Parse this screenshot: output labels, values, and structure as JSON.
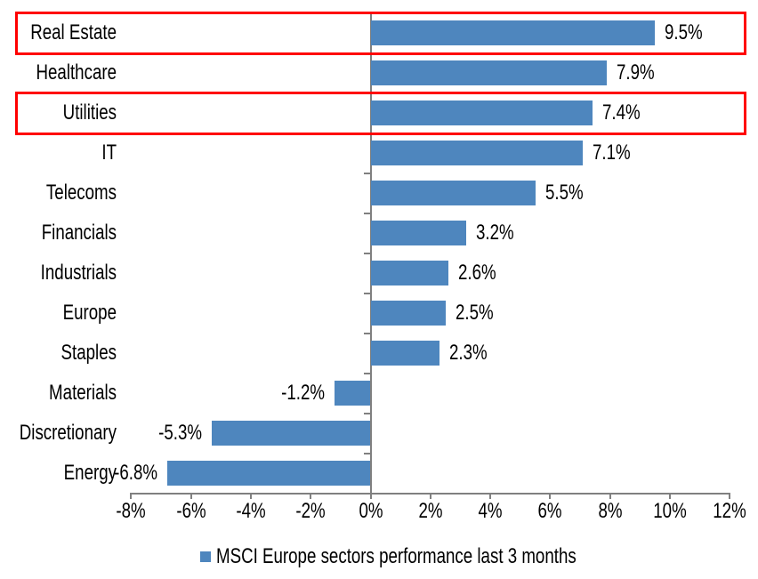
{
  "chart_data": {
    "type": "bar",
    "orientation": "horizontal",
    "title": "",
    "categories": [
      "Real Estate",
      "Healthcare",
      "Utilities",
      "IT",
      "Telecoms",
      "Financials",
      "Industrials",
      "Europe",
      "Staples",
      "Materials",
      "Discretionary",
      "Energy"
    ],
    "values": [
      9.5,
      7.9,
      7.4,
      7.1,
      5.5,
      3.2,
      2.6,
      2.5,
      2.3,
      -1.2,
      -5.3,
      -6.8
    ],
    "data_labels": [
      "9.5%",
      "7.9%",
      "7.4%",
      "7.1%",
      "5.5%",
      "3.2%",
      "2.6%",
      "2.5%",
      "2.3%",
      "-1.2%",
      "-5.3%",
      "-6.8%"
    ],
    "xlabel": "",
    "ylabel": "",
    "xlim": [
      -8,
      12
    ],
    "x_ticks": [
      -8,
      -6,
      -4,
      -2,
      0,
      2,
      4,
      6,
      8,
      10,
      12
    ],
    "x_tick_labels": [
      "-8%",
      "-6%",
      "-4%",
      "-2%",
      "0%",
      "2%",
      "4%",
      "6%",
      "8%",
      "10%",
      "12%"
    ],
    "grid": false,
    "legend": "MSCI Europe sectors performance last 3 months",
    "legend_position": "bottom-center",
    "bar_color": "#4E86BE",
    "axis_color": "#808080",
    "highlight_color": "#FF0000",
    "highlighted_categories": [
      "Real Estate",
      "Utilities"
    ]
  }
}
